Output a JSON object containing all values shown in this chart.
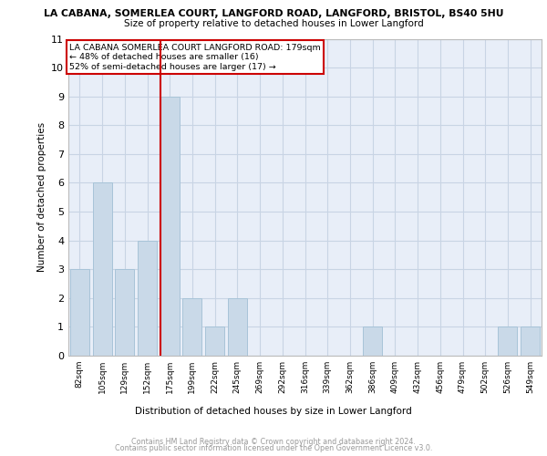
{
  "title_line1": "LA CABANA, SOMERLEA COURT, LANGFORD ROAD, LANGFORD, BRISTOL, BS40 5HU",
  "title_line2": "Size of property relative to detached houses in Lower Langford",
  "xlabel": "Distribution of detached houses by size in Lower Langford",
  "ylabel": "Number of detached properties",
  "categories": [
    "82sqm",
    "105sqm",
    "129sqm",
    "152sqm",
    "175sqm",
    "199sqm",
    "222sqm",
    "245sqm",
    "269sqm",
    "292sqm",
    "316sqm",
    "339sqm",
    "362sqm",
    "386sqm",
    "409sqm",
    "432sqm",
    "456sqm",
    "479sqm",
    "502sqm",
    "526sqm",
    "549sqm"
  ],
  "values": [
    3,
    6,
    3,
    4,
    9,
    2,
    1,
    2,
    0,
    0,
    0,
    0,
    0,
    1,
    0,
    0,
    0,
    0,
    0,
    1,
    1
  ],
  "bar_color": "#c9d9e8",
  "bar_edgecolor": "#a8c4d8",
  "vline_index": 4,
  "vline_color": "#cc0000",
  "annotation_line1": "LA CABANA SOMERLEA COURT LANGFORD ROAD: 179sqm",
  "annotation_line2": "← 48% of detached houses are smaller (16)",
  "annotation_line3": "52% of semi-detached houses are larger (17) →",
  "annotation_box_edgecolor": "#cc0000",
  "ylim": [
    0,
    11
  ],
  "yticks": [
    0,
    1,
    2,
    3,
    4,
    5,
    6,
    7,
    8,
    9,
    10,
    11
  ],
  "grid_color": "#c8d4e4",
  "background_color": "#e8eef8",
  "footer_line1": "Contains HM Land Registry data © Crown copyright and database right 2024.",
  "footer_line2": "Contains public sector information licensed under the Open Government Licence v3.0."
}
